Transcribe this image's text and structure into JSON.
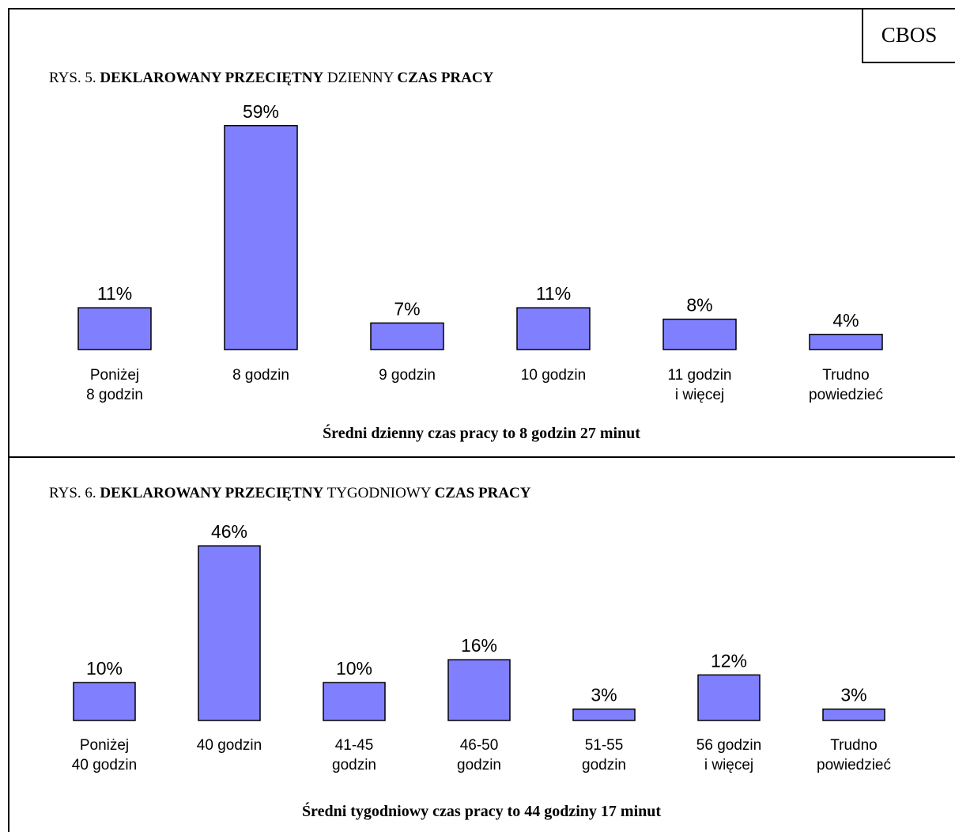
{
  "brand": "CBOS",
  "chart_data": [
    {
      "type": "bar",
      "title_prefix": "RYS. 5.",
      "title_parts": [
        {
          "text": "DEKLAROWANY PRZECIĘTNY",
          "bold": true
        },
        {
          "text": "DZIENNY",
          "bold": false
        },
        {
          "text": "CZAS PRACY",
          "bold": true
        }
      ],
      "categories": [
        [
          "Poniżej",
          "8 godzin"
        ],
        [
          "8 godzin"
        ],
        [
          "9 godzin"
        ],
        [
          "10 godzin"
        ],
        [
          "11 godzin",
          "i więcej"
        ],
        [
          "Trudno",
          "powiedzieć"
        ]
      ],
      "values": [
        11,
        59,
        7,
        11,
        8,
        4
      ],
      "value_labels": [
        "11%",
        "59%",
        "7%",
        "11%",
        "8%",
        "4%"
      ],
      "unit": "%",
      "summary": "Średni dzienny czas pracy to 8 godzin 27 minut",
      "bar_color": "#8080ff",
      "grid": false,
      "axes_visible": false
    },
    {
      "type": "bar",
      "title_prefix": "RYS. 6.",
      "title_parts": [
        {
          "text": "DEKLAROWANY PRZECIĘTNY",
          "bold": true
        },
        {
          "text": "TYGODNIOWY",
          "bold": false
        },
        {
          "text": "CZAS PRACY",
          "bold": true
        }
      ],
      "categories": [
        [
          "Poniżej",
          "40 godzin"
        ],
        [
          "40 godzin"
        ],
        [
          "41-45",
          "godzin"
        ],
        [
          "46-50",
          "godzin"
        ],
        [
          "51-55",
          "godzin"
        ],
        [
          "56 godzin",
          "i więcej"
        ],
        [
          "Trudno",
          "powiedzieć"
        ]
      ],
      "values": [
        10,
        46,
        10,
        16,
        3,
        12,
        3
      ],
      "value_labels": [
        "10%",
        "46%",
        "10%",
        "16%",
        "3%",
        "12%",
        "3%"
      ],
      "unit": "%",
      "summary": "Średni tygodniowy czas pracy to 44 godziny 17 minut",
      "bar_color": "#8080ff",
      "grid": false,
      "axes_visible": false
    }
  ]
}
